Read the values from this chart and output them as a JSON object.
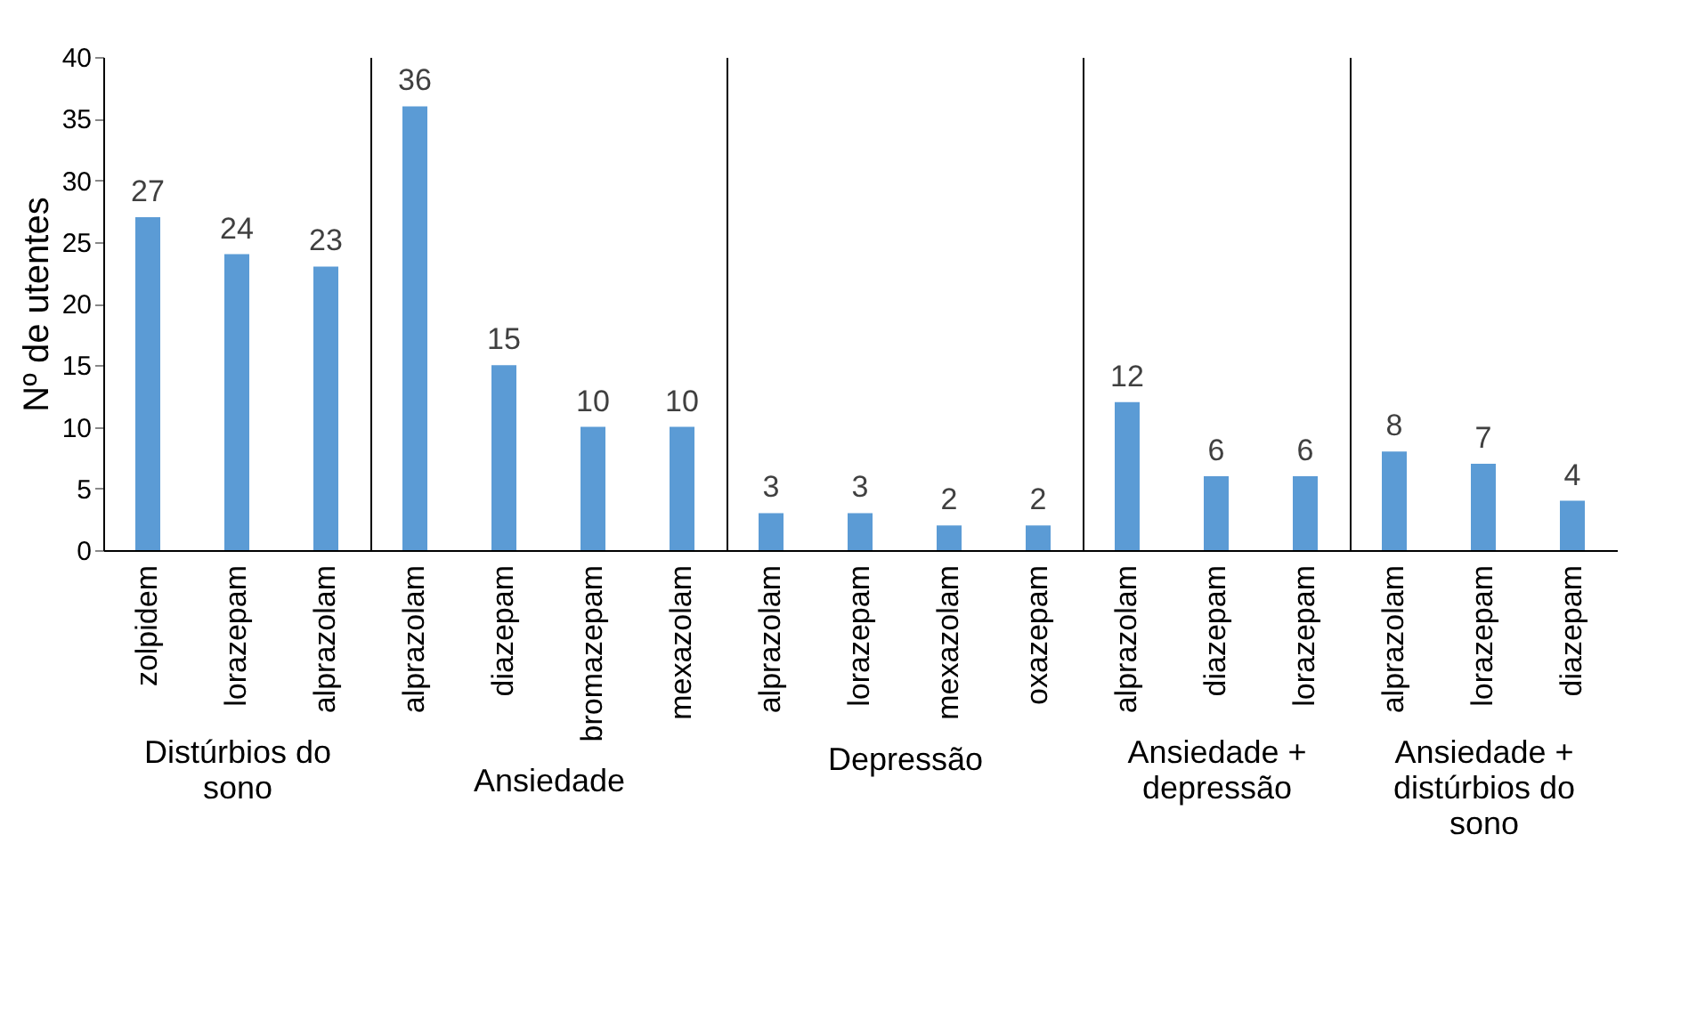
{
  "chart_data": [
    {
      "type": "bar",
      "xlabel": "Distúrbios do sono",
      "ylabel": "Nº de utentes",
      "categories": [
        "zolpidem",
        "lorazepam",
        "alprazolam"
      ],
      "values": [
        27,
        24,
        23
      ],
      "color": "#5b9bd5",
      "ylim": [
        0,
        40
      ],
      "yticks": [
        0,
        5,
        10,
        15,
        20,
        25,
        30,
        35,
        40
      ],
      "data_labels": true,
      "grid": false
    },
    {
      "type": "bar",
      "xlabel": "Ansiedade",
      "categories": [
        "alprazolam",
        "diazepam",
        "bromazepam",
        "mexazolam"
      ],
      "values": [
        36,
        15,
        10,
        10
      ],
      "color": "#5b9bd5",
      "ylim": [
        0,
        40
      ],
      "data_labels": true,
      "grid": false,
      "tick_labels": "x"
    },
    {
      "type": "bar",
      "xlabel": "Depressão",
      "categories": [
        "alprazolam",
        "lorazepam",
        "mexazolam",
        "oxazepam"
      ],
      "values": [
        3,
        3,
        2,
        2
      ],
      "color": "#5b9bd5",
      "ylim": [
        0,
        40
      ],
      "data_labels": true,
      "grid": false,
      "tick_labels": "x"
    },
    {
      "type": "bar",
      "xlabel": "Ansiedade + depressão",
      "categories": [
        "alprazolam",
        "diazepam",
        "lorazepam"
      ],
      "values": [
        12,
        6,
        6
      ],
      "color": "#5b9bd5",
      "ylim": [
        0,
        40
      ],
      "data_labels": true,
      "grid": false,
      "tick_labels": "x"
    },
    {
      "type": "bar",
      "xlabel": "Ansiedade + distúrbios do sono",
      "categories": [
        "alprazolam",
        "lorazepam",
        "diazepam"
      ],
      "values": [
        8,
        7,
        4
      ],
      "color": "#5b9bd5",
      "ylim": [
        0,
        40
      ],
      "data_labels": true,
      "grid": false,
      "tick_labels": "x"
    }
  ]
}
